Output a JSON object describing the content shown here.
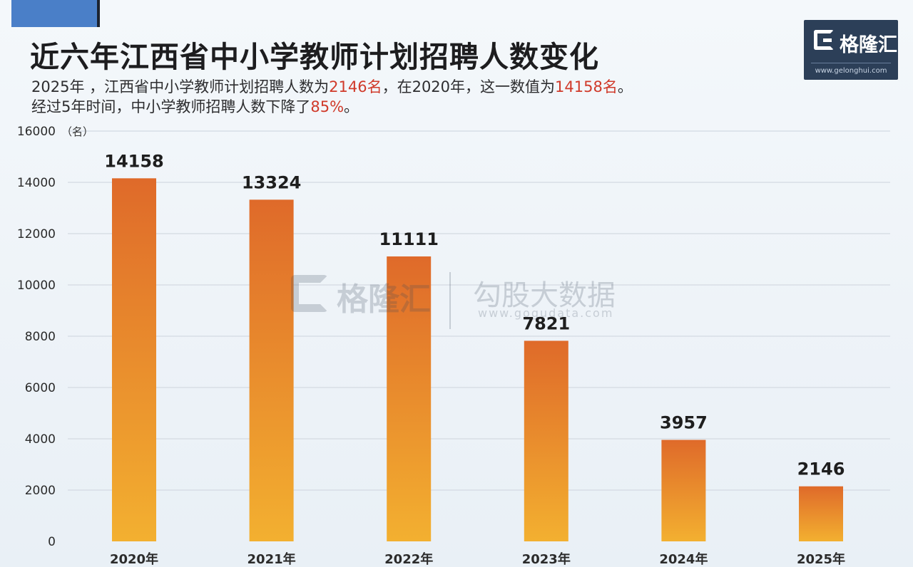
{
  "header": {
    "title": "近六年江西省中小学教师计划招聘人数变化",
    "subtitle_line1_a": "2025年 ，江西省中小学教师计划招聘人数为",
    "subtitle_line1_b": "2146名",
    "subtitle_line1_c": "，在2020年，这一数值为",
    "subtitle_line1_d": "14158名",
    "subtitle_line1_e": "。",
    "subtitle_line2_a": "经过5年时间，中小学教师招聘人数下降了",
    "subtitle_line2_b": "85%",
    "subtitle_line2_c": "。"
  },
  "logo": {
    "name": "格隆汇",
    "url": "www.gelonghui.com"
  },
  "watermark": {
    "logo": "格隆汇",
    "name": "勾股大数据",
    "url": "www.gogudata.com"
  },
  "colors": {
    "bar_top": "#df6a2a",
    "bar_bottom": "#f3b030",
    "highlight": "#d03a2a",
    "logo_bg": "#2c3f58"
  },
  "chart_data": {
    "type": "bar",
    "categories": [
      "2020年",
      "2021年",
      "2022年",
      "2023年",
      "2024年",
      "2025年"
    ],
    "values": [
      14158,
      13324,
      11111,
      7821,
      3957,
      2146
    ],
    "data_labels": [
      "14158",
      "13324",
      "11111",
      "7821",
      "3957",
      "2146"
    ],
    "ylim": [
      0,
      16000
    ],
    "yticks": [
      0,
      2000,
      4000,
      6000,
      8000,
      10000,
      12000,
      14000,
      16000
    ],
    "ytick_labels": [
      "0",
      "2000",
      "4000",
      "6000",
      "8000",
      "10000",
      "12000",
      "14000",
      "16000"
    ],
    "yunit": "（名）",
    "grid": true
  }
}
